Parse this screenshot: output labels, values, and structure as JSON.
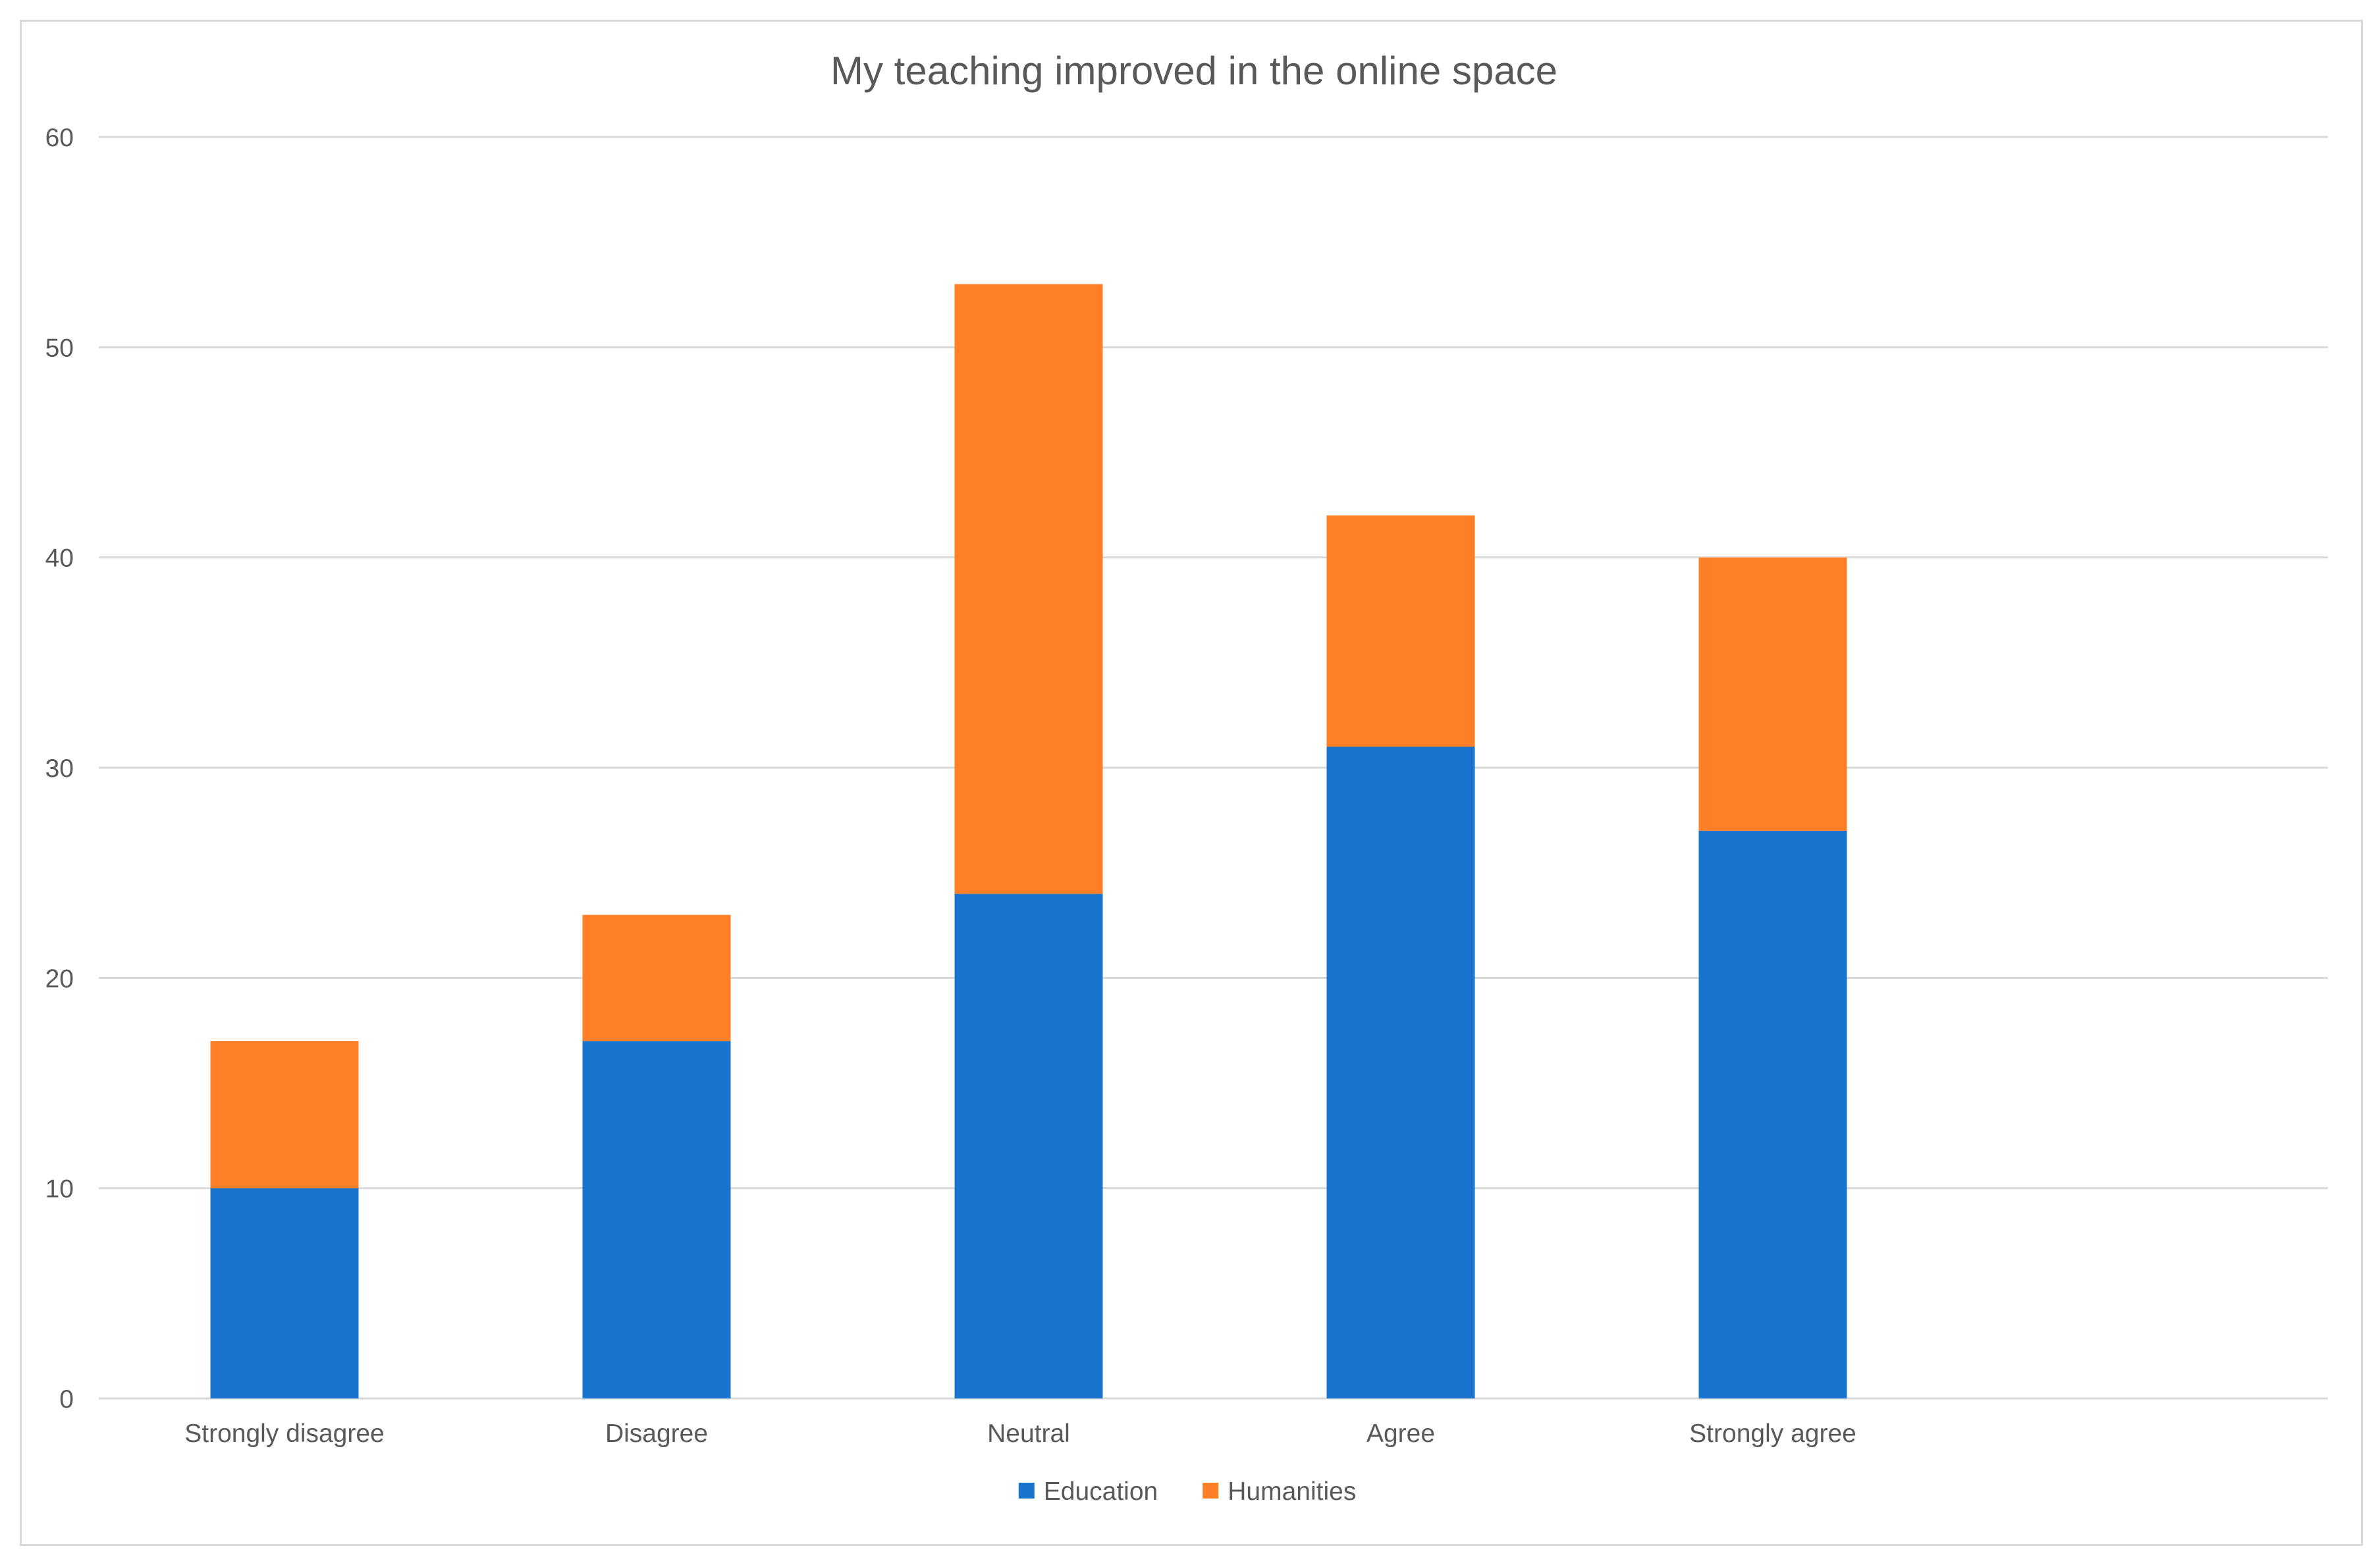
{
  "chart_data": {
    "type": "bar",
    "stacked": true,
    "title": "My teaching improved in the online space",
    "xlabel": "",
    "ylabel": "",
    "categories": [
      "Strongly disagree",
      "Disagree",
      "Neutral",
      "Agree",
      "Strongly agree"
    ],
    "series": [
      {
        "name": "Education",
        "values": [
          10,
          17,
          24,
          31,
          27
        ],
        "color": "#1874CD"
      },
      {
        "name": "Humanities",
        "values": [
          7,
          6,
          29,
          11,
          13
        ],
        "color": "#FF7F27"
      }
    ],
    "ylim": [
      0,
      60
    ],
    "yticks": [
      0,
      10,
      20,
      30,
      40,
      50,
      60
    ],
    "grid": true,
    "gridline_color": "#d9d9d9",
    "legend_position": "bottom"
  }
}
